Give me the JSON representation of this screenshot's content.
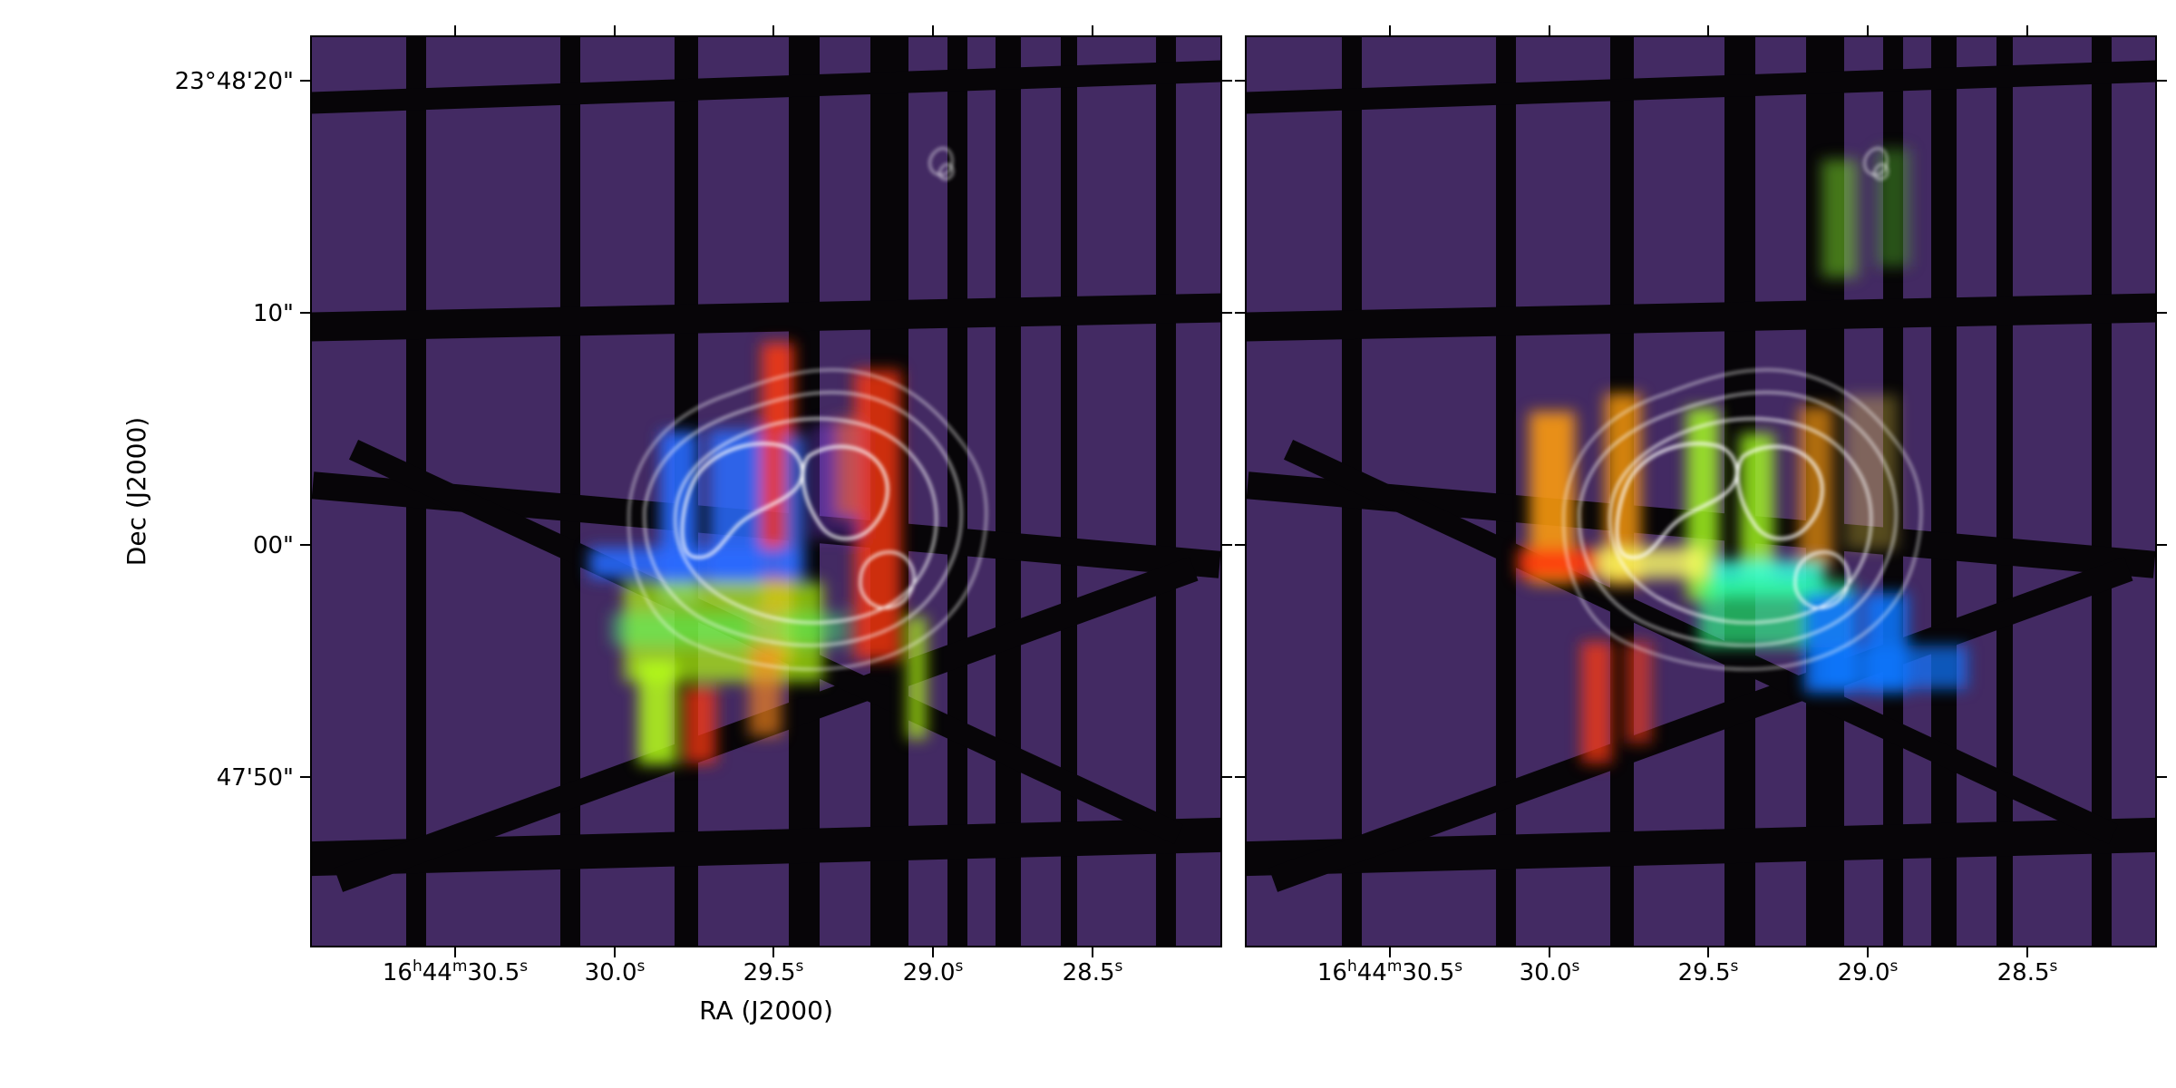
{
  "figure": {
    "panels": [
      {
        "id": "left",
        "x_axis_label": "RA (J2000)",
        "y_axis_label": "Dec (J2000)",
        "shows_y_ticks": true,
        "shows_x_label": true
      },
      {
        "id": "right",
        "x_axis_label": "",
        "y_axis_label": "",
        "shows_y_ticks": false,
        "shows_x_label": false
      }
    ],
    "x_ticks": [
      {
        "h": "16",
        "m": "44",
        "s": "30.5",
        "full": true
      },
      {
        "h": "",
        "m": "",
        "s": "30.0",
        "full": false
      },
      {
        "h": "",
        "m": "",
        "s": "29.5",
        "full": false
      },
      {
        "h": "",
        "m": "",
        "s": "29.0",
        "full": false
      },
      {
        "h": "",
        "m": "",
        "s": "28.5",
        "full": false
      }
    ],
    "y_ticks": [
      "23°48'20\"",
      "10\"",
      "00\"",
      "47'50\""
    ],
    "colors": {
      "background_mask": "#432a63",
      "stripe_dark": "#050505",
      "contour": "#ffffff",
      "left_red": "#ff3a12",
      "left_blue": "#2a6cff",
      "left_green": "#b6ff14",
      "right_orange": "#ff9d10",
      "right_green": "#a8ff20",
      "right_cyan": "#35ffe0",
      "right_blue": "#1277ff"
    }
  }
}
